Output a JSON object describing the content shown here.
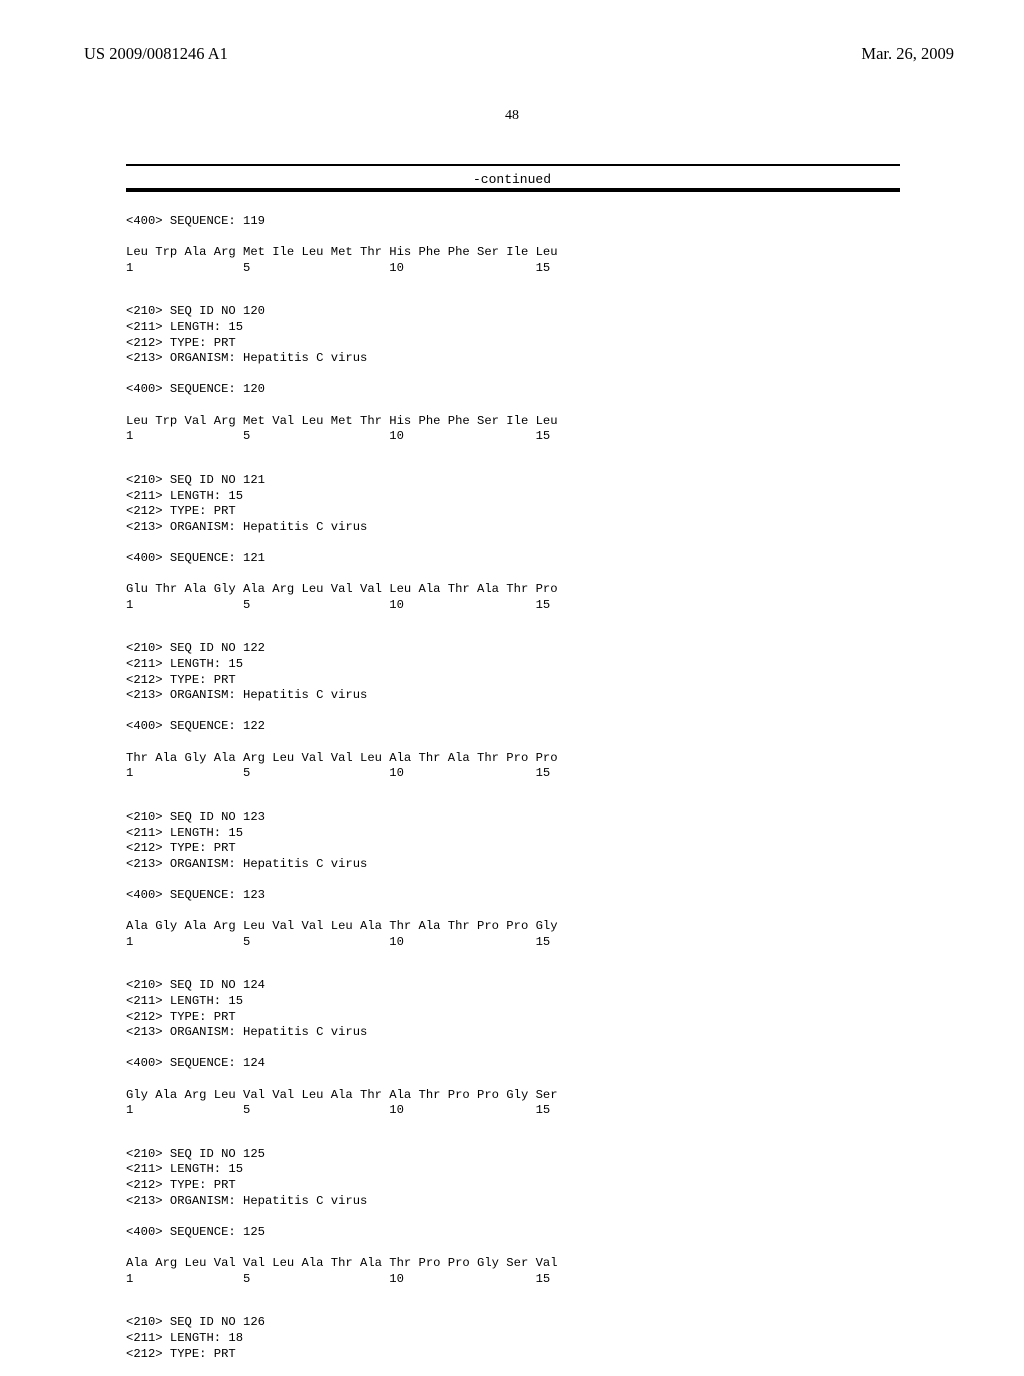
{
  "header": {
    "patent_id": "US 2009/0081246 A1",
    "date": "Mar. 26, 2009"
  },
  "page_number": "48",
  "continued_label": "-continued",
  "sequences": [
    {
      "prefix_lines": [
        "<400> SEQUENCE: 119"
      ],
      "seq_line": "Leu Trp Ala Arg Met Ile Leu Met Thr His Phe Phe Ser Ile Leu",
      "num_line": "1               5                   10                  15"
    },
    {
      "prefix_lines": [
        "<210> SEQ ID NO 120",
        "<211> LENGTH: 15",
        "<212> TYPE: PRT",
        "<213> ORGANISM: Hepatitis C virus",
        "",
        "<400> SEQUENCE: 120"
      ],
      "seq_line": "Leu Trp Val Arg Met Val Leu Met Thr His Phe Phe Ser Ile Leu",
      "num_line": "1               5                   10                  15"
    },
    {
      "prefix_lines": [
        "<210> SEQ ID NO 121",
        "<211> LENGTH: 15",
        "<212> TYPE: PRT",
        "<213> ORGANISM: Hepatitis C virus",
        "",
        "<400> SEQUENCE: 121"
      ],
      "seq_line": "Glu Thr Ala Gly Ala Arg Leu Val Val Leu Ala Thr Ala Thr Pro",
      "num_line": "1               5                   10                  15"
    },
    {
      "prefix_lines": [
        "<210> SEQ ID NO 122",
        "<211> LENGTH: 15",
        "<212> TYPE: PRT",
        "<213> ORGANISM: Hepatitis C virus",
        "",
        "<400> SEQUENCE: 122"
      ],
      "seq_line": "Thr Ala Gly Ala Arg Leu Val Val Leu Ala Thr Ala Thr Pro Pro",
      "num_line": "1               5                   10                  15"
    },
    {
      "prefix_lines": [
        "<210> SEQ ID NO 123",
        "<211> LENGTH: 15",
        "<212> TYPE: PRT",
        "<213> ORGANISM: Hepatitis C virus",
        "",
        "<400> SEQUENCE: 123"
      ],
      "seq_line": "Ala Gly Ala Arg Leu Val Val Leu Ala Thr Ala Thr Pro Pro Gly",
      "num_line": "1               5                   10                  15"
    },
    {
      "prefix_lines": [
        "<210> SEQ ID NO 124",
        "<211> LENGTH: 15",
        "<212> TYPE: PRT",
        "<213> ORGANISM: Hepatitis C virus",
        "",
        "<400> SEQUENCE: 124"
      ],
      "seq_line": "Gly Ala Arg Leu Val Val Leu Ala Thr Ala Thr Pro Pro Gly Ser",
      "num_line": "1               5                   10                  15"
    },
    {
      "prefix_lines": [
        "<210> SEQ ID NO 125",
        "<211> LENGTH: 15",
        "<212> TYPE: PRT",
        "<213> ORGANISM: Hepatitis C virus",
        "",
        "<400> SEQUENCE: 125"
      ],
      "seq_line": "Ala Arg Leu Val Val Leu Ala Thr Ala Thr Pro Pro Gly Ser Val",
      "num_line": "1               5                   10                  15"
    },
    {
      "prefix_lines": [
        "<210> SEQ ID NO 126",
        "<211> LENGTH: 18",
        "<212> TYPE: PRT"
      ],
      "seq_line": null,
      "num_line": null
    }
  ]
}
